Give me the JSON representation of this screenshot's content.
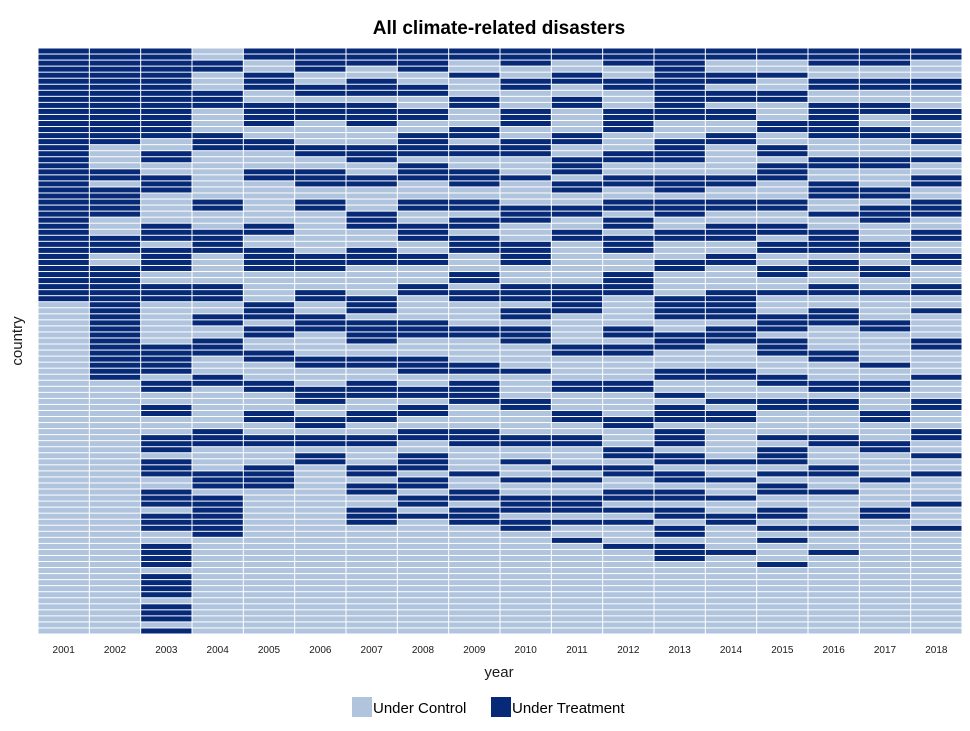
{
  "chart_data": {
    "type": "heatmap",
    "title": "All climate-related disasters",
    "xlabel": "year",
    "ylabel": "country",
    "x": [
      "2001",
      "2002",
      "2003",
      "2004",
      "2005",
      "2006",
      "2007",
      "2008",
      "2009",
      "2010",
      "2011",
      "2012",
      "2013",
      "2014",
      "2015",
      "2016",
      "2017",
      "2018"
    ],
    "n_countries": 97,
    "grid": false,
    "legend": {
      "placement": "bottom",
      "entries": [
        {
          "label": "Under Control",
          "color": "#b0c4de"
        },
        {
          "label": "Under Treatment",
          "color": "#062a78"
        }
      ]
    },
    "treatment_runs": [
      [
        [
          0,
          41
        ]
      ],
      [
        [
          0,
          15
        ],
        [
          20,
          21
        ],
        [
          23,
          27
        ],
        [
          31,
          33
        ],
        [
          36,
          54
        ]
      ],
      [
        [
          0,
          14
        ],
        [
          17,
          18
        ],
        [
          21,
          23
        ],
        [
          29,
          31
        ],
        [
          33,
          36
        ],
        [
          39,
          41
        ],
        [
          49,
          53
        ],
        [
          55,
          56
        ],
        [
          59,
          60
        ],
        [
          64,
          66
        ],
        [
          68,
          70
        ],
        [
          73,
          75
        ],
        [
          77,
          79
        ],
        [
          82,
          85
        ],
        [
          87,
          90
        ],
        [
          92,
          94
        ],
        [
          96,
          96
        ]
      ],
      [
        [
          2,
          3
        ],
        [
          7,
          9
        ],
        [
          14,
          16
        ],
        [
          25,
          26
        ],
        [
          30,
          33
        ],
        [
          39,
          41
        ],
        [
          44,
          45
        ],
        [
          48,
          50
        ],
        [
          54,
          55
        ],
        [
          63,
          65
        ],
        [
          70,
          72
        ],
        [
          74,
          76
        ],
        [
          77,
          80
        ]
      ],
      [
        [
          0,
          1
        ],
        [
          4,
          6
        ],
        [
          9,
          12
        ],
        [
          15,
          16
        ],
        [
          20,
          21
        ],
        [
          29,
          30
        ],
        [
          33,
          36
        ],
        [
          42,
          44
        ],
        [
          46,
          47
        ],
        [
          50,
          51
        ],
        [
          55,
          56
        ],
        [
          60,
          61
        ],
        [
          64,
          65
        ],
        [
          69,
          72
        ]
      ],
      [
        [
          0,
          3
        ],
        [
          6,
          7
        ],
        [
          9,
          11
        ],
        [
          16,
          17
        ],
        [
          20,
          22
        ],
        [
          25,
          26
        ],
        [
          34,
          36
        ],
        [
          40,
          41
        ],
        [
          44,
          46
        ],
        [
          51,
          52
        ],
        [
          56,
          58
        ],
        [
          61,
          62
        ],
        [
          64,
          65
        ],
        [
          67,
          68
        ]
      ],
      [
        [
          0,
          2
        ],
        [
          5,
          7
        ],
        [
          9,
          12
        ],
        [
          16,
          18
        ],
        [
          21,
          22
        ],
        [
          27,
          29
        ],
        [
          33,
          35
        ],
        [
          41,
          43
        ],
        [
          45,
          48
        ],
        [
          51,
          52
        ],
        [
          55,
          57
        ],
        [
          60,
          61
        ],
        [
          64,
          65
        ],
        [
          69,
          70
        ],
        [
          72,
          73
        ],
        [
          76,
          78
        ]
      ],
      [
        [
          0,
          3
        ],
        [
          6,
          7
        ],
        [
          10,
          11
        ],
        [
          14,
          17
        ],
        [
          19,
          21
        ],
        [
          25,
          26
        ],
        [
          29,
          31
        ],
        [
          34,
          35
        ],
        [
          39,
          40
        ],
        [
          45,
          47
        ],
        [
          51,
          53
        ],
        [
          56,
          57
        ],
        [
          59,
          60
        ],
        [
          63,
          64
        ],
        [
          67,
          69
        ],
        [
          71,
          72
        ],
        [
          74,
          75
        ],
        [
          77,
          77
        ]
      ],
      [
        [
          0,
          1
        ],
        [
          4,
          4
        ],
        [
          8,
          9
        ],
        [
          13,
          14
        ],
        [
          16,
          17
        ],
        [
          20,
          22
        ],
        [
          25,
          26
        ],
        [
          28,
          29
        ],
        [
          31,
          33
        ],
        [
          37,
          38
        ],
        [
          40,
          41
        ],
        [
          46,
          47
        ],
        [
          52,
          53
        ],
        [
          55,
          58
        ],
        [
          63,
          65
        ],
        [
          70,
          70
        ],
        [
          73,
          74
        ],
        [
          76,
          78
        ]
      ],
      [
        [
          0,
          2
        ],
        [
          5,
          6
        ],
        [
          10,
          12
        ],
        [
          15,
          17
        ],
        [
          21,
          21
        ],
        [
          26,
          28
        ],
        [
          32,
          35
        ],
        [
          39,
          41
        ],
        [
          43,
          44
        ],
        [
          46,
          48
        ],
        [
          53,
          53
        ],
        [
          58,
          59
        ],
        [
          64,
          65
        ],
        [
          68,
          68
        ],
        [
          71,
          71
        ],
        [
          74,
          76
        ],
        [
          78,
          79
        ]
      ],
      [
        [
          0,
          1
        ],
        [
          4,
          5
        ],
        [
          8,
          9
        ],
        [
          14,
          15
        ],
        [
          18,
          20
        ],
        [
          22,
          23
        ],
        [
          26,
          27
        ],
        [
          30,
          31
        ],
        [
          39,
          43
        ],
        [
          49,
          50
        ],
        [
          55,
          56
        ],
        [
          60,
          61
        ],
        [
          64,
          65
        ],
        [
          69,
          69
        ],
        [
          71,
          71
        ],
        [
          74,
          76
        ],
        [
          78,
          78
        ],
        [
          81,
          81
        ]
      ],
      [
        [
          0,
          2
        ],
        [
          5,
          6
        ],
        [
          10,
          13
        ],
        [
          17,
          18
        ],
        [
          21,
          22
        ],
        [
          25,
          26
        ],
        [
          28,
          29
        ],
        [
          31,
          33
        ],
        [
          37,
          40
        ],
        [
          46,
          47
        ],
        [
          49,
          50
        ],
        [
          55,
          56
        ],
        [
          61,
          62
        ],
        [
          66,
          67
        ],
        [
          69,
          70
        ],
        [
          73,
          74
        ],
        [
          76,
          76
        ],
        [
          78,
          78
        ],
        [
          82,
          82
        ]
      ],
      [
        [
          0,
          11
        ],
        [
          15,
          18
        ],
        [
          21,
          23
        ],
        [
          25,
          27
        ],
        [
          30,
          31
        ],
        [
          35,
          36
        ],
        [
          41,
          44
        ],
        [
          47,
          49
        ],
        [
          53,
          54
        ],
        [
          57,
          57
        ],
        [
          59,
          61
        ],
        [
          63,
          65
        ],
        [
          67,
          68
        ],
        [
          70,
          71
        ],
        [
          73,
          74
        ],
        [
          76,
          77
        ],
        [
          79,
          80
        ],
        [
          82,
          84
        ]
      ],
      [
        [
          0,
          1
        ],
        [
          4,
          5
        ],
        [
          7,
          8
        ],
        [
          10,
          11
        ],
        [
          14,
          15
        ],
        [
          21,
          22
        ],
        [
          25,
          26
        ],
        [
          29,
          31
        ],
        [
          34,
          35
        ],
        [
          40,
          44
        ],
        [
          46,
          48
        ],
        [
          53,
          54
        ],
        [
          58,
          58
        ],
        [
          60,
          61
        ],
        [
          68,
          68
        ],
        [
          71,
          71
        ],
        [
          74,
          74
        ],
        [
          77,
          78
        ],
        [
          83,
          83
        ]
      ],
      [
        [
          0,
          1
        ],
        [
          4,
          4
        ],
        [
          7,
          8
        ],
        [
          12,
          13
        ],
        [
          16,
          17
        ],
        [
          19,
          21
        ],
        [
          25,
          26
        ],
        [
          29,
          30
        ],
        [
          32,
          33
        ],
        [
          36,
          37
        ],
        [
          40,
          40
        ],
        [
          44,
          46
        ],
        [
          48,
          50
        ],
        [
          54,
          55
        ],
        [
          58,
          59
        ],
        [
          64,
          64
        ],
        [
          66,
          68
        ],
        [
          70,
          70
        ],
        [
          72,
          73
        ],
        [
          76,
          77
        ],
        [
          79,
          79
        ],
        [
          81,
          81
        ],
        [
          85,
          85
        ]
      ],
      [
        [
          0,
          2
        ],
        [
          5,
          6
        ],
        [
          9,
          14
        ],
        [
          18,
          19
        ],
        [
          22,
          24
        ],
        [
          27,
          27
        ],
        [
          30,
          33
        ],
        [
          35,
          36
        ],
        [
          39,
          40
        ],
        [
          43,
          45
        ],
        [
          50,
          51
        ],
        [
          55,
          56
        ],
        [
          58,
          59
        ],
        [
          64,
          65
        ],
        [
          69,
          70
        ],
        [
          73,
          73
        ],
        [
          79,
          79
        ],
        [
          83,
          83
        ]
      ],
      [
        [
          0,
          2
        ],
        [
          5,
          6
        ],
        [
          9,
          10
        ],
        [
          13,
          14
        ],
        [
          18,
          19
        ],
        [
          23,
          24
        ],
        [
          26,
          28
        ],
        [
          32,
          33
        ],
        [
          36,
          37
        ],
        [
          40,
          40
        ],
        [
          45,
          46
        ],
        [
          52,
          52
        ],
        [
          55,
          56
        ],
        [
          60,
          61
        ],
        [
          65,
          66
        ],
        [
          71,
          71
        ],
        [
          76,
          77
        ]
      ],
      [
        [
          0,
          1
        ],
        [
          5,
          6
        ],
        [
          10,
          11
        ],
        [
          14,
          15
        ],
        [
          18,
          18
        ],
        [
          21,
          22
        ],
        [
          25,
          27
        ],
        [
          30,
          31
        ],
        [
          34,
          35
        ],
        [
          39,
          40
        ],
        [
          43,
          43
        ],
        [
          48,
          49
        ],
        [
          54,
          54
        ],
        [
          58,
          59
        ],
        [
          63,
          64
        ],
        [
          67,
          67
        ],
        [
          70,
          70
        ],
        [
          75,
          75
        ],
        [
          79,
          79
        ]
      ]
    ]
  }
}
